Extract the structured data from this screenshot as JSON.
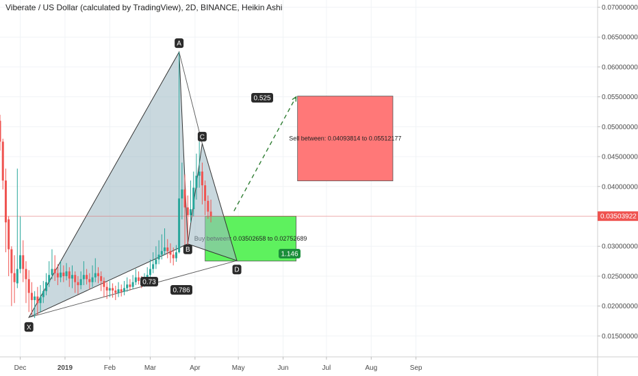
{
  "chart_data": {
    "type": "candlestick",
    "title": "Viberate / US Dollar (calculated by TradingView), 2D, BINANCE, Heikin Ashi",
    "x_ticks": [
      "Dec",
      "2019",
      "Feb",
      "Mar",
      "Apr",
      "May",
      "Jun",
      "Jul",
      "Aug",
      "Sep"
    ],
    "y_ticks": [
      "0.01500000",
      "0.02000000",
      "0.02500000",
      "0.03000000",
      "0.03500000",
      "0.04000000",
      "0.04500000",
      "0.05000000",
      "0.05500000",
      "0.06000000",
      "0.06500000",
      "0.07000000"
    ],
    "ylim": [
      0.0115,
      0.0712
    ],
    "current_price": "0.03503922",
    "candles": [
      {
        "d": "2018-11-17",
        "o": 0.051,
        "c": 0.0475,
        "h": 0.052,
        "l": 0.046
      },
      {
        "d": "2018-11-19",
        "o": 0.0475,
        "c": 0.041,
        "h": 0.048,
        "l": 0.0395
      },
      {
        "d": "2018-11-21",
        "o": 0.041,
        "c": 0.034,
        "h": 0.043,
        "l": 0.029
      },
      {
        "d": "2018-11-23",
        "o": 0.0345,
        "c": 0.0295,
        "h": 0.035,
        "l": 0.025
      },
      {
        "d": "2018-11-25",
        "o": 0.0295,
        "c": 0.0255,
        "h": 0.03,
        "l": 0.02
      },
      {
        "d": "2018-11-27",
        "o": 0.0255,
        "c": 0.024,
        "h": 0.0285,
        "l": 0.0205
      },
      {
        "d": "2018-11-29",
        "o": 0.0238,
        "c": 0.0262,
        "h": 0.043,
        "l": 0.023
      },
      {
        "d": "2018-12-01",
        "o": 0.0262,
        "c": 0.0285,
        "h": 0.035,
        "l": 0.0255
      },
      {
        "d": "2018-12-03",
        "o": 0.0285,
        "c": 0.0262,
        "h": 0.031,
        "l": 0.024
      },
      {
        "d": "2018-12-05",
        "o": 0.0262,
        "c": 0.0245,
        "h": 0.0275,
        "l": 0.0205
      },
      {
        "d": "2018-12-07",
        "o": 0.0245,
        "c": 0.0222,
        "h": 0.026,
        "l": 0.019
      },
      {
        "d": "2018-12-09",
        "o": 0.0222,
        "c": 0.021,
        "h": 0.024,
        "l": 0.0185
      },
      {
        "d": "2018-12-11",
        "o": 0.021,
        "c": 0.0216,
        "h": 0.0225,
        "l": 0.018
      },
      {
        "d": "2018-12-13",
        "o": 0.0216,
        "c": 0.0205,
        "h": 0.0232,
        "l": 0.0185
      },
      {
        "d": "2018-12-15",
        "o": 0.0205,
        "c": 0.0215,
        "h": 0.0235,
        "l": 0.019
      },
      {
        "d": "2018-12-17",
        "o": 0.0215,
        "c": 0.0225,
        "h": 0.0242,
        "l": 0.0205
      },
      {
        "d": "2018-12-19",
        "o": 0.0225,
        "c": 0.024,
        "h": 0.0255,
        "l": 0.0218
      },
      {
        "d": "2018-12-21",
        "o": 0.024,
        "c": 0.0252,
        "h": 0.0275,
        "l": 0.0232
      },
      {
        "d": "2018-12-23",
        "o": 0.0252,
        "c": 0.0262,
        "h": 0.0295,
        "l": 0.0245
      },
      {
        "d": "2018-12-25",
        "o": 0.0262,
        "c": 0.0255,
        "h": 0.0285,
        "l": 0.0242
      },
      {
        "d": "2018-12-27",
        "o": 0.0255,
        "c": 0.0248,
        "h": 0.027,
        "l": 0.0235
      },
      {
        "d": "2018-12-29",
        "o": 0.0248,
        "c": 0.0256,
        "h": 0.0275,
        "l": 0.024
      },
      {
        "d": "2018-12-31",
        "o": 0.0256,
        "c": 0.025,
        "h": 0.0268,
        "l": 0.024
      },
      {
        "d": "2019-01-02",
        "o": 0.025,
        "c": 0.0258,
        "h": 0.0272,
        "l": 0.0243
      },
      {
        "d": "2019-01-04",
        "o": 0.0258,
        "c": 0.0246,
        "h": 0.0265,
        "l": 0.0232
      },
      {
        "d": "2019-01-06",
        "o": 0.0246,
        "c": 0.0252,
        "h": 0.0268,
        "l": 0.023
      },
      {
        "d": "2019-01-08",
        "o": 0.0252,
        "c": 0.024,
        "h": 0.0258,
        "l": 0.0222
      },
      {
        "d": "2019-01-10",
        "o": 0.024,
        "c": 0.0235,
        "h": 0.025,
        "l": 0.022
      },
      {
        "d": "2019-01-12",
        "o": 0.0235,
        "c": 0.0245,
        "h": 0.0258,
        "l": 0.0228
      },
      {
        "d": "2019-01-14",
        "o": 0.0245,
        "c": 0.0252,
        "h": 0.0275,
        "l": 0.0235
      },
      {
        "d": "2019-01-16",
        "o": 0.0252,
        "c": 0.0245,
        "h": 0.0262,
        "l": 0.0236
      },
      {
        "d": "2019-01-18",
        "o": 0.0245,
        "c": 0.024,
        "h": 0.0255,
        "l": 0.0228
      },
      {
        "d": "2019-01-20",
        "o": 0.024,
        "c": 0.0248,
        "h": 0.0268,
        "l": 0.0232
      },
      {
        "d": "2019-01-22",
        "o": 0.0248,
        "c": 0.0255,
        "h": 0.028,
        "l": 0.024
      },
      {
        "d": "2019-01-24",
        "o": 0.0255,
        "c": 0.025,
        "h": 0.0265,
        "l": 0.0238
      },
      {
        "d": "2019-01-26",
        "o": 0.025,
        "c": 0.0242,
        "h": 0.0258,
        "l": 0.0225
      },
      {
        "d": "2019-01-28",
        "o": 0.0242,
        "c": 0.0232,
        "h": 0.0248,
        "l": 0.0215
      },
      {
        "d": "2019-01-30",
        "o": 0.0232,
        "c": 0.0226,
        "h": 0.024,
        "l": 0.0212
      },
      {
        "d": "2019-02-01",
        "o": 0.0226,
        "c": 0.023,
        "h": 0.0242,
        "l": 0.0215
      },
      {
        "d": "2019-02-03",
        "o": 0.023,
        "c": 0.0226,
        "h": 0.0238,
        "l": 0.0214
      },
      {
        "d": "2019-02-05",
        "o": 0.0226,
        "c": 0.0222,
        "h": 0.0234,
        "l": 0.021
      },
      {
        "d": "2019-02-07",
        "o": 0.0222,
        "c": 0.0228,
        "h": 0.024,
        "l": 0.0215
      },
      {
        "d": "2019-02-09",
        "o": 0.0228,
        "c": 0.0224,
        "h": 0.0236,
        "l": 0.0216
      },
      {
        "d": "2019-02-11",
        "o": 0.0224,
        "c": 0.023,
        "h": 0.0242,
        "l": 0.0218
      },
      {
        "d": "2019-02-13",
        "o": 0.023,
        "c": 0.0236,
        "h": 0.0248,
        "l": 0.0224
      },
      {
        "d": "2019-02-15",
        "o": 0.0236,
        "c": 0.0232,
        "h": 0.0245,
        "l": 0.0226
      },
      {
        "d": "2019-02-17",
        "o": 0.0232,
        "c": 0.024,
        "h": 0.0252,
        "l": 0.0228
      },
      {
        "d": "2019-02-19",
        "o": 0.024,
        "c": 0.0248,
        "h": 0.0262,
        "l": 0.0235
      },
      {
        "d": "2019-02-21",
        "o": 0.0248,
        "c": 0.0242,
        "h": 0.0258,
        "l": 0.0236
      },
      {
        "d": "2019-02-23",
        "o": 0.0242,
        "c": 0.0238,
        "h": 0.025,
        "l": 0.023
      },
      {
        "d": "2019-02-25",
        "o": 0.0238,
        "c": 0.0244,
        "h": 0.0255,
        "l": 0.0232
      },
      {
        "d": "2019-02-27",
        "o": 0.0244,
        "c": 0.0252,
        "h": 0.0265,
        "l": 0.0238
      },
      {
        "d": "2019-03-01",
        "o": 0.0252,
        "c": 0.0262,
        "h": 0.0278,
        "l": 0.0246
      },
      {
        "d": "2019-03-03",
        "o": 0.0262,
        "c": 0.027,
        "h": 0.029,
        "l": 0.0255
      },
      {
        "d": "2019-03-05",
        "o": 0.027,
        "c": 0.0278,
        "h": 0.03,
        "l": 0.0262
      },
      {
        "d": "2019-03-07",
        "o": 0.0278,
        "c": 0.0286,
        "h": 0.031,
        "l": 0.027
      },
      {
        "d": "2019-03-09",
        "o": 0.0286,
        "c": 0.0292,
        "h": 0.032,
        "l": 0.0278
      },
      {
        "d": "2019-03-11",
        "o": 0.0292,
        "c": 0.0298,
        "h": 0.033,
        "l": 0.0285
      },
      {
        "d": "2019-03-13",
        "o": 0.0298,
        "c": 0.0292,
        "h": 0.0312,
        "l": 0.028
      },
      {
        "d": "2019-03-15",
        "o": 0.0292,
        "c": 0.0286,
        "h": 0.0305,
        "l": 0.0272
      },
      {
        "d": "2019-03-17",
        "o": 0.0286,
        "c": 0.028,
        "h": 0.0298,
        "l": 0.0268
      },
      {
        "d": "2019-03-19",
        "o": 0.028,
        "c": 0.029,
        "h": 0.0302,
        "l": 0.0274
      },
      {
        "d": "2019-03-21",
        "o": 0.029,
        "c": 0.038,
        "h": 0.0625,
        "l": 0.0288
      },
      {
        "d": "2019-03-23",
        "o": 0.038,
        "c": 0.0395,
        "h": 0.044,
        "l": 0.0345
      },
      {
        "d": "2019-03-25",
        "o": 0.0395,
        "c": 0.0365,
        "h": 0.042,
        "l": 0.03
      },
      {
        "d": "2019-03-27",
        "o": 0.0365,
        "c": 0.0352,
        "h": 0.0385,
        "l": 0.03
      },
      {
        "d": "2019-03-29",
        "o": 0.0352,
        "c": 0.0362,
        "h": 0.041,
        "l": 0.034
      },
      {
        "d": "2019-03-31",
        "o": 0.0362,
        "c": 0.0398,
        "h": 0.0425,
        "l": 0.035
      },
      {
        "d": "2019-04-02",
        "o": 0.0398,
        "c": 0.0418,
        "h": 0.0455,
        "l": 0.0378
      },
      {
        "d": "2019-04-04",
        "o": 0.0418,
        "c": 0.0425,
        "h": 0.0475,
        "l": 0.0398
      },
      {
        "d": "2019-04-06",
        "o": 0.0425,
        "c": 0.0402,
        "h": 0.044,
        "l": 0.037
      },
      {
        "d": "2019-04-08",
        "o": 0.0402,
        "c": 0.0376,
        "h": 0.041,
        "l": 0.0352
      },
      {
        "d": "2019-04-10",
        "o": 0.0376,
        "c": 0.0358,
        "h": 0.0385,
        "l": 0.0346
      },
      {
        "d": "2019-04-12",
        "o": 0.0358,
        "c": 0.035,
        "h": 0.0378,
        "l": 0.034
      }
    ]
  },
  "pattern": {
    "labels": {
      "x": "X",
      "a": "A",
      "b": "B",
      "c": "C",
      "d": "D",
      "xb_ratio": "0.73",
      "xd_ratio": "0.786",
      "ac_ratio": "0.525",
      "bd_ratio": "1.146"
    },
    "points": {
      "X": {
        "d": "2018-12-07",
        "p": 0.0181
      },
      "A": {
        "d": "2019-03-21",
        "p": 0.0625
      },
      "B": {
        "d": "2019-03-27",
        "p": 0.0304
      },
      "C": {
        "d": "2019-04-06",
        "p": 0.0472
      },
      "D": {
        "d": "2019-04-30",
        "p": 0.0276
      }
    },
    "projection": {
      "from": {
        "d": "2019-04-28",
        "p": 0.0359
      },
      "to": {
        "d": "2019-06-10",
        "p": 0.055
      }
    }
  },
  "zones": {
    "buy_text": "Buy between: 0.03502658 to 0.02752689",
    "sell_text": "Sell between: 0.04093814 to 0.05512177",
    "buy": {
      "start": "2019-04-08",
      "end": "2019-06-10",
      "low": 0.02752689,
      "high": 0.03502658
    },
    "sell": {
      "start": "2019-06-11",
      "end": "2019-08-16",
      "low": 0.04093814,
      "high": 0.05512177
    }
  },
  "colors": {
    "bull": "#26a69a",
    "bear": "#ef5350",
    "pattern_fill": "#9db8c3",
    "buy_fill": "#5ef15e",
    "sell_fill": "#ff7878",
    "label_bg": "#2b2b2b",
    "price_tag": "#ef5350"
  }
}
